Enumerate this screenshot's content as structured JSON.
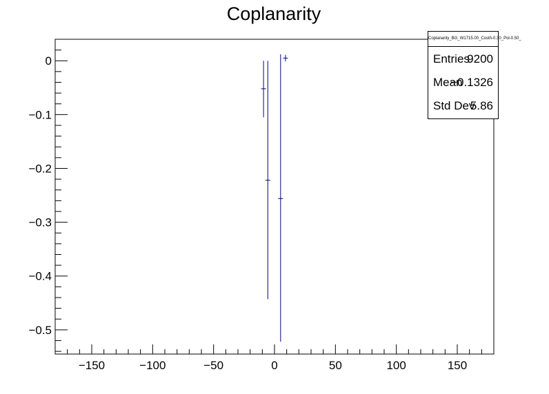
{
  "chart_data": {
    "type": "scatter",
    "title": "Coplanarity",
    "xlim": [
      -180,
      180
    ],
    "ylim": [
      -0.545,
      0.04
    ],
    "x_ticks": [
      -150,
      -100,
      -50,
      0,
      50,
      100,
      150
    ],
    "x_tick_labels": [
      "−150",
      "−100",
      "−50",
      "0",
      "50",
      "100",
      "150"
    ],
    "y_ticks": [
      0,
      -0.1,
      -0.2,
      -0.3,
      -0.4,
      -0.5
    ],
    "y_tick_labels": [
      "0",
      "−0.1",
      "−0.2",
      "−0.3",
      "−0.4",
      "−0.5"
    ],
    "grid": false,
    "marker_color": "#000080",
    "points": [
      {
        "x": -9,
        "y": -0.052,
        "xerr": 2,
        "ylow": -0.105,
        "yhigh": 0.0
      },
      {
        "x": -5.5,
        "y": -0.222,
        "xerr": 2,
        "ylow": -0.443,
        "yhigh": 0.0
      },
      {
        "x": 5,
        "y": -0.256,
        "xerr": 2,
        "ylow": -0.522,
        "yhigh": 0.012
      },
      {
        "x": 9,
        "y": 0.005,
        "xerr": 2,
        "ylow": -0.001,
        "yhigh": 0.011
      }
    ]
  },
  "stats": {
    "name": "Coplanarity_BG_W1715.00_Costh-0.30_Pol-0.50_",
    "entries_label": "Entries",
    "entries_value": "9200",
    "mean_label": "Mean",
    "mean_value": "−0.1326",
    "stddev_label": "Std Dev",
    "stddev_value": "5.86"
  }
}
